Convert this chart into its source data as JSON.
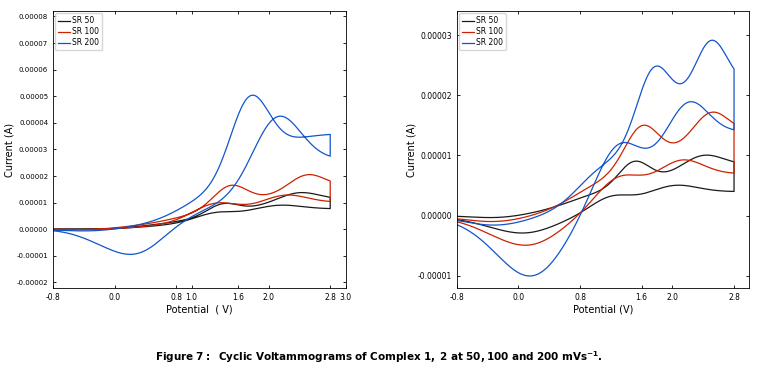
{
  "fig_width": 7.57,
  "fig_height": 3.69,
  "background_color": "#ffffff",
  "legend_labels": [
    "SR 50",
    "SR 100",
    "SR 200"
  ],
  "colors": [
    "#1a1a1a",
    "#cc2200",
    "#1155cc"
  ],
  "xlabel1": "Potential  ( V)",
  "ylabel1": "Current (A)",
  "xlabel2": "Potential (V)",
  "ylabel2": "Current (A)",
  "plot1": {
    "xlim": [
      -0.8,
      3.0
    ],
    "ylim": [
      -2.2e-05,
      8.2e-05
    ],
    "xticks": [
      -0.8,
      0.0,
      0.8,
      1.0,
      1.6,
      2.0,
      2.8,
      3.0
    ],
    "xtick_labels": [
      "-0.8",
      "0.0",
      "0.8",
      "1.0",
      "1.6",
      "2.0",
      "2.8",
      "3.0"
    ],
    "yticks": [
      -2e-05,
      -1e-05,
      0.0,
      1e-05,
      2e-05,
      3e-05,
      4e-05,
      5e-05,
      6e-05,
      7e-05,
      8e-05
    ],
    "ytick_labels": [
      "-0.00002",
      "-0.00001",
      "0.00000",
      "0.00001",
      "0.00002",
      "0.00003",
      "0.00004",
      "0.00005",
      "0.00006",
      "0.00007",
      "0.00008"
    ]
  },
  "plot2": {
    "xlim": [
      -0.8,
      3.0
    ],
    "ylim": [
      -1.2e-05,
      3.4e-05
    ],
    "xticks": [
      -0.8,
      0.0,
      0.8,
      1.6,
      2.0,
      2.8
    ],
    "xtick_labels": [
      "-0.8",
      "0.0",
      "0.8",
      "1.6",
      "2.0",
      "2.8"
    ],
    "yticks": [
      -1e-05,
      0.0,
      1e-05,
      2e-05,
      3e-05
    ],
    "ytick_labels": [
      "-0.00001",
      "0.00000",
      "0.00001",
      "0.00002",
      "0.00003"
    ]
  }
}
